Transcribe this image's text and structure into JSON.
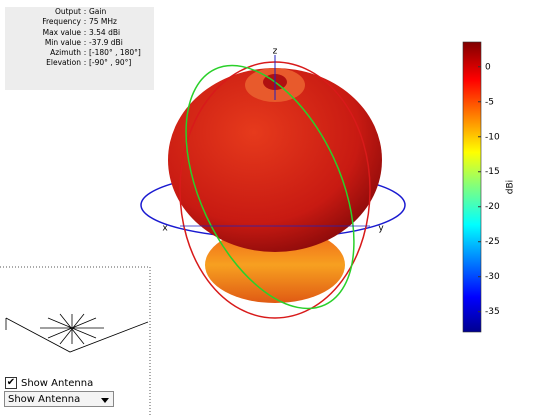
{
  "info": [
    [
      "Output",
      "Gain"
    ],
    [
      "Frequency",
      "75 MHz"
    ],
    [
      "Max value",
      "3.54 dBi"
    ],
    [
      "Min value",
      "-37.9 dBi"
    ],
    [
      "Azimuth",
      "[-180° , 180°]"
    ],
    [
      "Elevation",
      "[-90° , 90°]"
    ]
  ],
  "axes": {
    "x": "x",
    "y": "y",
    "z": "z"
  },
  "colorbar": {
    "label": "dBi",
    "lim": [
      -37.9,
      3.54
    ],
    "ticks": [
      0,
      -5,
      -10,
      -15,
      -20,
      -25,
      -30,
      -35
    ]
  },
  "controls": {
    "checkbox": "Show Antenna",
    "dropdown": "Show Antenna"
  }
}
